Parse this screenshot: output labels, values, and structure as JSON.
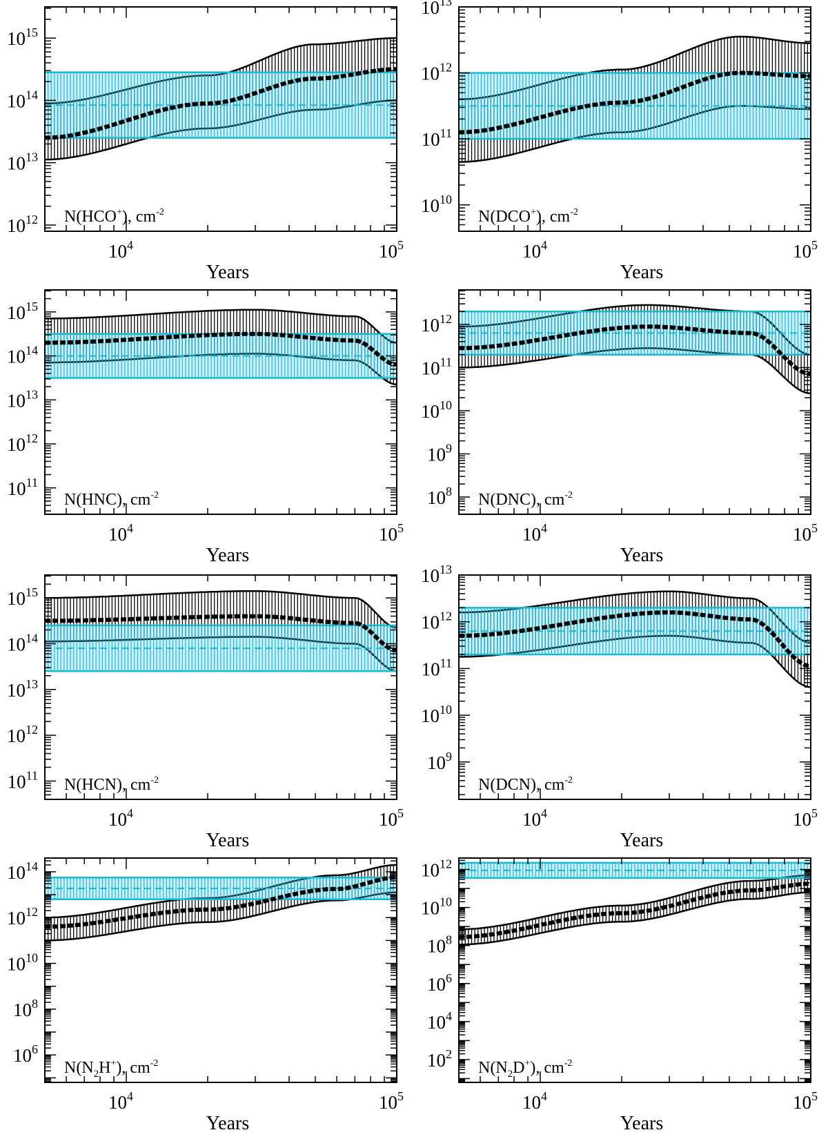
{
  "colors": {
    "model": "#000000",
    "observed": "#1ab8d8"
  },
  "chart_data": [
    {
      "type": "area",
      "label_main": "N(HCO",
      "label_sup": "+",
      "label_tail": "), cm",
      "label_unit_sup": "-2",
      "xlabel": "Years",
      "xlim": [
        5000,
        100000
      ],
      "xscale": "log",
      "xticks": [
        {
          "v": 10000,
          "base": "10",
          "exp": "4"
        },
        {
          "v": 100000,
          "base": "10",
          "exp": "5"
        }
      ],
      "ylim_log10": [
        11.9,
        15.5
      ],
      "yticks": [
        {
          "e": 12,
          "base": "10",
          "exp": "12"
        },
        {
          "e": 13,
          "base": "10",
          "exp": "13"
        },
        {
          "e": 14,
          "base": "10",
          "exp": "14"
        },
        {
          "e": 15,
          "base": "10",
          "exp": "15"
        }
      ],
      "model_log10": {
        "x": [
          5000,
          20000,
          50000,
          100000
        ],
        "mid": [
          13.4,
          13.95,
          14.35,
          14.5
        ],
        "low": [
          13.05,
          13.55,
          13.85,
          14.0
        ],
        "high": [
          13.95,
          14.4,
          14.9,
          15.0
        ]
      },
      "observed_log10": {
        "low": 13.4,
        "high": 14.45
      }
    },
    {
      "type": "area",
      "label_main": "N(DCO",
      "label_sup": "+",
      "label_tail": "), cm",
      "label_unit_sup": "-2",
      "xlabel": "Years",
      "xlim": [
        5000,
        100000
      ],
      "xscale": "log",
      "xticks": [
        {
          "v": 10000,
          "base": "10",
          "exp": "4"
        },
        {
          "v": 100000,
          "base": "10",
          "exp": "5"
        }
      ],
      "ylim_log10": [
        9.6,
        13.0
      ],
      "yticks": [
        {
          "e": 10,
          "base": "10",
          "exp": "10"
        },
        {
          "e": 11,
          "base": "10",
          "exp": "11"
        },
        {
          "e": 12,
          "base": "10",
          "exp": "12"
        },
        {
          "e": 13,
          "base": "10",
          "exp": "13"
        }
      ],
      "model_log10": {
        "x": [
          5000,
          20000,
          55000,
          100000
        ],
        "mid": [
          11.1,
          11.55,
          12.0,
          11.95
        ],
        "low": [
          10.65,
          11.1,
          11.5,
          11.45
        ],
        "high": [
          11.6,
          12.05,
          12.55,
          12.45
        ]
      },
      "observed_log10": {
        "low": 11.0,
        "high": 12.0
      }
    },
    {
      "type": "area",
      "label_main": "N(HNC",
      "label_sup": "",
      "label_tail": "), cm",
      "label_unit_sup": "-2",
      "xlabel": "Years",
      "xlim": [
        5000,
        100000
      ],
      "xscale": "log",
      "xticks": [
        {
          "v": 10000,
          "base": "10",
          "exp": "4"
        },
        {
          "v": 100000,
          "base": "10",
          "exp": "5"
        }
      ],
      "ylim_log10": [
        10.4,
        15.5
      ],
      "yticks": [
        {
          "e": 11,
          "base": "10",
          "exp": "11"
        },
        {
          "e": 12,
          "base": "10",
          "exp": "12"
        },
        {
          "e": 13,
          "base": "10",
          "exp": "13"
        },
        {
          "e": 14,
          "base": "10",
          "exp": "14"
        },
        {
          "e": 15,
          "base": "10",
          "exp": "15"
        }
      ],
      "model_log10": {
        "x": [
          5000,
          30000,
          70000,
          100000
        ],
        "mid": [
          14.3,
          14.5,
          14.35,
          13.8
        ],
        "low": [
          13.85,
          14.05,
          13.9,
          13.35
        ],
        "high": [
          14.85,
          15.05,
          14.9,
          14.3
        ]
      },
      "observed_log10": {
        "low": 13.5,
        "high": 14.5
      }
    },
    {
      "type": "area",
      "label_main": "N(DNC",
      "label_sup": "",
      "label_tail": "), cm",
      "label_unit_sup": "-2",
      "xlabel": "Years",
      "xlim": [
        5000,
        100000
      ],
      "xscale": "log",
      "xticks": [
        {
          "v": 10000,
          "base": "10",
          "exp": "4"
        },
        {
          "v": 100000,
          "base": "10",
          "exp": "5"
        }
      ],
      "ylim_log10": [
        7.6,
        12.8
      ],
      "yticks": [
        {
          "e": 8,
          "base": "10",
          "exp": "8"
        },
        {
          "e": 9,
          "base": "10",
          "exp": "9"
        },
        {
          "e": 10,
          "base": "10",
          "exp": "10"
        },
        {
          "e": 11,
          "base": "10",
          "exp": "11"
        },
        {
          "e": 12,
          "base": "10",
          "exp": "12"
        }
      ],
      "model_log10": {
        "x": [
          5000,
          25000,
          60000,
          100000
        ],
        "mid": [
          11.45,
          11.95,
          11.8,
          10.85
        ],
        "low": [
          11.0,
          11.45,
          11.3,
          10.4
        ],
        "high": [
          11.95,
          12.45,
          12.3,
          11.3
        ]
      },
      "observed_log10": {
        "low": 11.3,
        "high": 12.3
      }
    },
    {
      "type": "area",
      "label_main": "N(HCN",
      "label_sup": "",
      "label_tail": "), cm",
      "label_unit_sup": "-2",
      "xlabel": "Years",
      "xlim": [
        5000,
        100000
      ],
      "xscale": "log",
      "xticks": [
        {
          "v": 10000,
          "base": "10",
          "exp": "4"
        },
        {
          "v": 100000,
          "base": "10",
          "exp": "5"
        }
      ],
      "ylim_log10": [
        10.6,
        15.5
      ],
      "yticks": [
        {
          "e": 11,
          "base": "10",
          "exp": "11"
        },
        {
          "e": 12,
          "base": "10",
          "exp": "12"
        },
        {
          "e": 13,
          "base": "10",
          "exp": "13"
        },
        {
          "e": 14,
          "base": "10",
          "exp": "14"
        },
        {
          "e": 15,
          "base": "10",
          "exp": "15"
        }
      ],
      "model_log10": {
        "x": [
          5000,
          30000,
          70000,
          100000
        ],
        "mid": [
          14.5,
          14.6,
          14.45,
          13.85
        ],
        "low": [
          14.05,
          14.15,
          14.0,
          13.4
        ],
        "high": [
          15.0,
          15.15,
          15.0,
          14.35
        ]
      },
      "observed_log10": {
        "low": 13.4,
        "high": 14.4
      }
    },
    {
      "type": "area",
      "label_main": "N(DCN",
      "label_sup": "",
      "label_tail": "), cm",
      "label_unit_sup": "-2",
      "xlabel": "Years",
      "xlim": [
        5000,
        100000
      ],
      "xscale": "log",
      "xticks": [
        {
          "v": 10000,
          "base": "10",
          "exp": "4"
        },
        {
          "v": 100000,
          "base": "10",
          "exp": "5"
        }
      ],
      "ylim_log10": [
        8.2,
        13.0
      ],
      "yticks": [
        {
          "e": 9,
          "base": "10",
          "exp": "9"
        },
        {
          "e": 10,
          "base": "10",
          "exp": "10"
        },
        {
          "e": 11,
          "base": "10",
          "exp": "11"
        },
        {
          "e": 12,
          "base": "10",
          "exp": "12"
        },
        {
          "e": 13,
          "base": "10",
          "exp": "13"
        }
      ],
      "model_log10": {
        "x": [
          5000,
          30000,
          60000,
          100000
        ],
        "mid": [
          11.7,
          12.2,
          12.05,
          11.05
        ],
        "low": [
          11.25,
          11.7,
          11.55,
          10.6
        ],
        "high": [
          12.2,
          12.65,
          12.5,
          11.55
        ]
      },
      "observed_log10": {
        "low": 11.3,
        "high": 12.3
      }
    },
    {
      "type": "area",
      "label_main": "N(N",
      "label_sub": "2",
      "label_main2": "H",
      "label_sup": "+",
      "label_tail": "), cm",
      "label_unit_sup": "-2",
      "xlabel": "Years",
      "xlim": [
        5000,
        100000
      ],
      "xscale": "log",
      "xticks": [
        {
          "v": 10000,
          "base": "10",
          "exp": "4"
        },
        {
          "v": 100000,
          "base": "10",
          "exp": "5"
        }
      ],
      "ylim_log10": [
        4.8,
        14.6
      ],
      "yticks": [
        {
          "e": 6,
          "base": "10",
          "exp": "6"
        },
        {
          "e": 8,
          "base": "10",
          "exp": "8"
        },
        {
          "e": 10,
          "base": "10",
          "exp": "10"
        },
        {
          "e": 12,
          "base": "10",
          "exp": "12"
        },
        {
          "e": 14,
          "base": "10",
          "exp": "14"
        }
      ],
      "model_log10": {
        "x": [
          5000,
          20000,
          60000,
          100000
        ],
        "mid": [
          11.6,
          12.35,
          13.25,
          13.75
        ],
        "low": [
          11.0,
          11.8,
          12.75,
          13.1
        ],
        "high": [
          12.0,
          12.85,
          13.85,
          14.3
        ]
      },
      "observed_log10": {
        "low": 12.8,
        "high": 13.75
      }
    },
    {
      "type": "area",
      "label_main": "N(N",
      "label_sub": "2",
      "label_main2": "D",
      "label_sup": "+",
      "label_tail": "), cm",
      "label_unit_sup": "-2",
      "xlabel": "Years",
      "xlim": [
        5000,
        100000
      ],
      "xscale": "log",
      "xticks": [
        {
          "v": 10000,
          "base": "10",
          "exp": "4"
        },
        {
          "v": 100000,
          "base": "10",
          "exp": "5"
        }
      ],
      "ylim_log10": [
        0.8,
        12.6
      ],
      "yticks": [
        {
          "e": 2,
          "base": "10",
          "exp": "2"
        },
        {
          "e": 4,
          "base": "10",
          "exp": "4"
        },
        {
          "e": 6,
          "base": "10",
          "exp": "6"
        },
        {
          "e": 8,
          "base": "10",
          "exp": "8"
        },
        {
          "e": 10,
          "base": "10",
          "exp": "10"
        },
        {
          "e": 12,
          "base": "10",
          "exp": "12"
        }
      ],
      "model_log10": {
        "x": [
          5000,
          20000,
          60000,
          100000
        ],
        "mid": [
          8.45,
          9.7,
          10.9,
          11.25
        ],
        "low": [
          8.05,
          9.25,
          10.45,
          10.8
        ],
        "high": [
          8.85,
          10.1,
          11.4,
          11.7
        ]
      },
      "observed_log10": {
        "low": 11.55,
        "high": 12.35
      }
    }
  ]
}
